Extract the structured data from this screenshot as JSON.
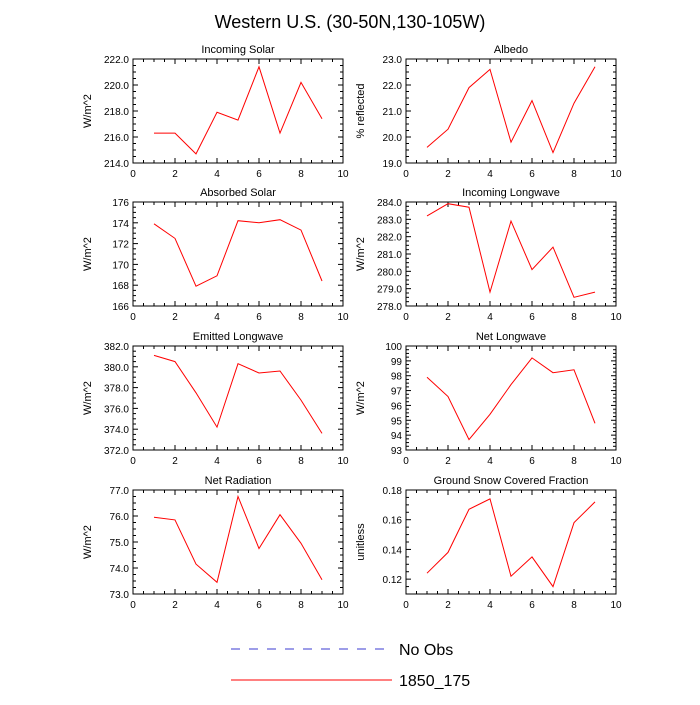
{
  "figure_title": "Western U.S. (30-50N,130-105W)",
  "legend": [
    {
      "label": "No Obs",
      "style": "dashed",
      "color": "#3b3bd0"
    },
    {
      "label": "1850_175",
      "style": "solid",
      "color": "#ff0000"
    }
  ],
  "chart_data": [
    {
      "type": "line",
      "title": "Incoming Solar",
      "ylabel": "W/m^2",
      "xlim": [
        0,
        10
      ],
      "xticks": [
        0,
        2,
        4,
        6,
        8,
        10
      ],
      "xtick_labels": [
        "0",
        "2",
        "4",
        "6",
        "8",
        "10"
      ],
      "ylim": [
        214,
        222
      ],
      "yticks": [
        214,
        216,
        218,
        220,
        222
      ],
      "ytick_labels": [
        "214.0",
        "216.0",
        "218.0",
        "220.0",
        "222.0"
      ],
      "series": [
        {
          "name": "1850_175",
          "x": [
            1,
            2,
            3,
            4,
            5,
            6,
            7,
            8,
            9
          ],
          "values": [
            216.3,
            216.3,
            214.7,
            217.9,
            217.3,
            221.4,
            216.3,
            220.2,
            217.4
          ]
        }
      ]
    },
    {
      "type": "line",
      "title": "Albedo",
      "ylabel": "% reflected",
      "xlim": [
        0,
        10
      ],
      "xticks": [
        0,
        2,
        4,
        6,
        8,
        10
      ],
      "xtick_labels": [
        "0",
        "2",
        "4",
        "6",
        "8",
        "10"
      ],
      "ylim": [
        19,
        23
      ],
      "yticks": [
        19,
        20,
        21,
        22,
        23
      ],
      "ytick_labels": [
        "19.0",
        "20.0",
        "21.0",
        "22.0",
        "23.0"
      ],
      "series": [
        {
          "name": "1850_175",
          "x": [
            1,
            2,
            3,
            4,
            5,
            6,
            7,
            8,
            9
          ],
          "values": [
            19.6,
            20.3,
            21.9,
            22.6,
            19.8,
            21.4,
            19.4,
            21.3,
            22.7
          ]
        }
      ]
    },
    {
      "type": "line",
      "title": "Absorbed Solar",
      "ylabel": "W/m^2",
      "xlim": [
        0,
        10
      ],
      "xticks": [
        0,
        2,
        4,
        6,
        8,
        10
      ],
      "xtick_labels": [
        "0",
        "2",
        "4",
        "6",
        "8",
        "10"
      ],
      "ylim": [
        166,
        176
      ],
      "yticks": [
        166,
        168,
        170,
        172,
        174,
        176
      ],
      "ytick_labels": [
        "166",
        "168",
        "170",
        "172",
        "174",
        "176"
      ],
      "series": [
        {
          "name": "1850_175",
          "x": [
            1,
            2,
            3,
            4,
            5,
            6,
            7,
            8,
            9
          ],
          "values": [
            173.9,
            172.5,
            167.9,
            168.9,
            174.2,
            174.0,
            174.3,
            173.3,
            168.4
          ]
        }
      ]
    },
    {
      "type": "line",
      "title": "Incoming Longwave",
      "ylabel": "W/m^2",
      "xlim": [
        0,
        10
      ],
      "xticks": [
        0,
        2,
        4,
        6,
        8,
        10
      ],
      "xtick_labels": [
        "0",
        "2",
        "4",
        "6",
        "8",
        "10"
      ],
      "ylim": [
        278,
        284
      ],
      "yticks": [
        278,
        279,
        280,
        281,
        282,
        283,
        284
      ],
      "ytick_labels": [
        "278.0",
        "279.0",
        "280.0",
        "281.0",
        "282.0",
        "283.0",
        "284.0"
      ],
      "series": [
        {
          "name": "1850_175",
          "x": [
            1,
            2,
            3,
            4,
            5,
            6,
            7,
            8,
            9
          ],
          "values": [
            283.2,
            283.9,
            283.7,
            278.8,
            282.9,
            280.1,
            281.4,
            278.5,
            278.8
          ]
        }
      ]
    },
    {
      "type": "line",
      "title": "Emitted Longwave",
      "ylabel": "W/m^2",
      "xlim": [
        0,
        10
      ],
      "xticks": [
        0,
        2,
        4,
        6,
        8,
        10
      ],
      "xtick_labels": [
        "0",
        "2",
        "4",
        "6",
        "8",
        "10"
      ],
      "ylim": [
        372,
        382
      ],
      "yticks": [
        372,
        374,
        376,
        378,
        380,
        382
      ],
      "ytick_labels": [
        "372.0",
        "374.0",
        "376.0",
        "378.0",
        "380.0",
        "382.0"
      ],
      "series": [
        {
          "name": "1850_175",
          "x": [
            1,
            2,
            3,
            4,
            5,
            6,
            7,
            8,
            9
          ],
          "values": [
            381.1,
            380.5,
            377.5,
            374.2,
            380.3,
            379.4,
            379.6,
            376.8,
            373.6
          ]
        }
      ]
    },
    {
      "type": "line",
      "title": "Net Longwave",
      "ylabel": "W/m^2",
      "xlim": [
        0,
        10
      ],
      "xticks": [
        0,
        2,
        4,
        6,
        8,
        10
      ],
      "xtick_labels": [
        "0",
        "2",
        "4",
        "6",
        "8",
        "10"
      ],
      "ylim": [
        93,
        100
      ],
      "yticks": [
        93,
        94,
        95,
        96,
        97,
        98,
        99,
        100
      ],
      "ytick_labels": [
        "93",
        "94",
        "95",
        "96",
        "97",
        "98",
        "99",
        "100"
      ],
      "series": [
        {
          "name": "1850_175",
          "x": [
            1,
            2,
            3,
            4,
            5,
            6,
            7,
            8,
            9
          ],
          "values": [
            97.9,
            96.6,
            93.7,
            95.4,
            97.4,
            99.2,
            98.2,
            98.4,
            94.8
          ]
        }
      ]
    },
    {
      "type": "line",
      "title": "Net Radiation",
      "ylabel": "W/m^2",
      "xlim": [
        0,
        10
      ],
      "xticks": [
        0,
        2,
        4,
        6,
        8,
        10
      ],
      "xtick_labels": [
        "0",
        "2",
        "4",
        "6",
        "8",
        "10"
      ],
      "ylim": [
        73,
        77
      ],
      "yticks": [
        73,
        74,
        75,
        76,
        77
      ],
      "ytick_labels": [
        "73.0",
        "74.0",
        "75.0",
        "76.0",
        "77.0"
      ],
      "series": [
        {
          "name": "1850_175",
          "x": [
            1,
            2,
            3,
            4,
            5,
            6,
            7,
            8,
            9
          ],
          "values": [
            75.95,
            75.85,
            74.15,
            73.45,
            76.75,
            74.75,
            76.05,
            74.95,
            73.55
          ]
        }
      ]
    },
    {
      "type": "line",
      "title": "Ground Snow Covered Fraction",
      "ylabel": "unitless",
      "xlim": [
        0,
        10
      ],
      "xticks": [
        0,
        2,
        4,
        6,
        8,
        10
      ],
      "xtick_labels": [
        "0",
        "2",
        "4",
        "6",
        "8",
        "10"
      ],
      "ylim": [
        0.11,
        0.18
      ],
      "yticks": [
        0.12,
        0.14,
        0.16,
        0.18
      ],
      "ytick_labels": [
        "0.12",
        "0.14",
        "0.16",
        "0.18"
      ],
      "series": [
        {
          "name": "1850_175",
          "x": [
            1,
            2,
            3,
            4,
            5,
            6,
            7,
            8,
            9
          ],
          "values": [
            0.124,
            0.138,
            0.167,
            0.174,
            0.122,
            0.135,
            0.115,
            0.158,
            0.172
          ]
        }
      ]
    }
  ]
}
